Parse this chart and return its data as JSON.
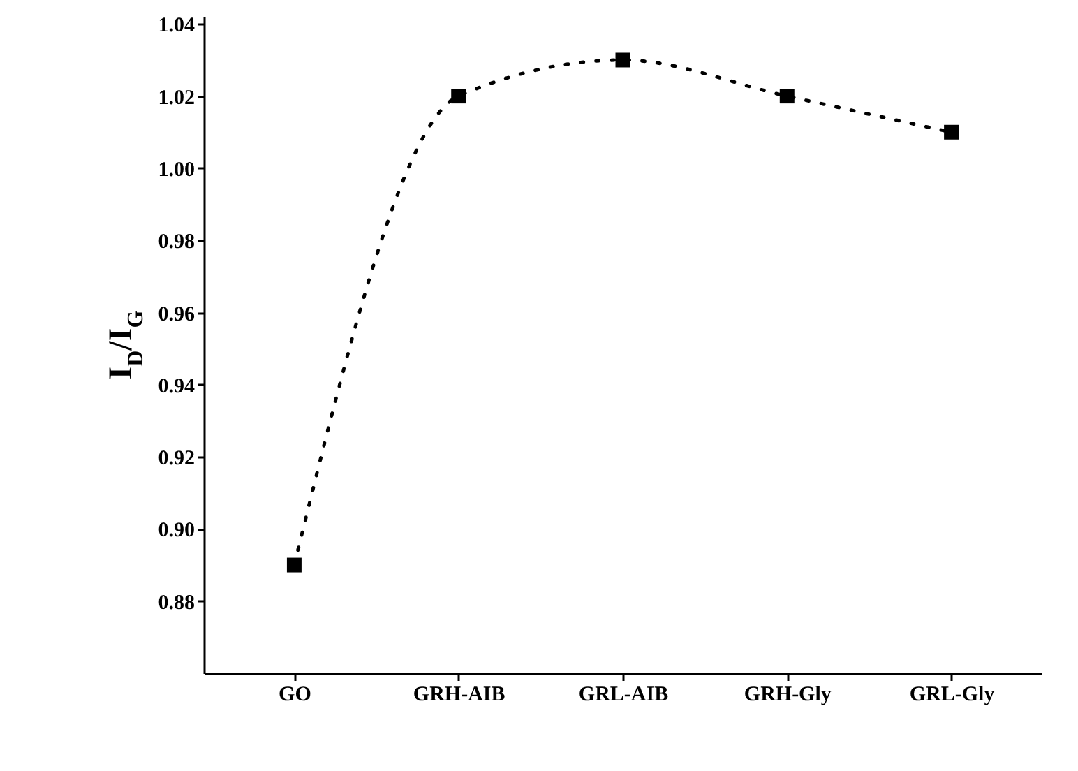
{
  "chart_data": {
    "type": "line",
    "ylabel": "I$_{D}$/I$_{G}$",
    "categories": [
      "GO",
      "GRH-AIB",
      "GRL-AIB",
      "GRH-Gly",
      "GRL-Gly"
    ],
    "series": [
      {
        "color": "#000000",
        "values": [
          0.89,
          1.02,
          1.03,
          1.02,
          1.01
        ]
      }
    ],
    "ylim": [
      0.86,
      1.042
    ],
    "yticks": [
      0.88,
      {
        "value": 0.9,
        "label": "0.90"
      },
      0.92,
      0.94,
      0.96,
      0.98,
      {
        "value": 1,
        "label": "1.00"
      },
      1.02,
      1.04
    ],
    "marker": "square",
    "line_style": "dotted",
    "grid": false
  }
}
